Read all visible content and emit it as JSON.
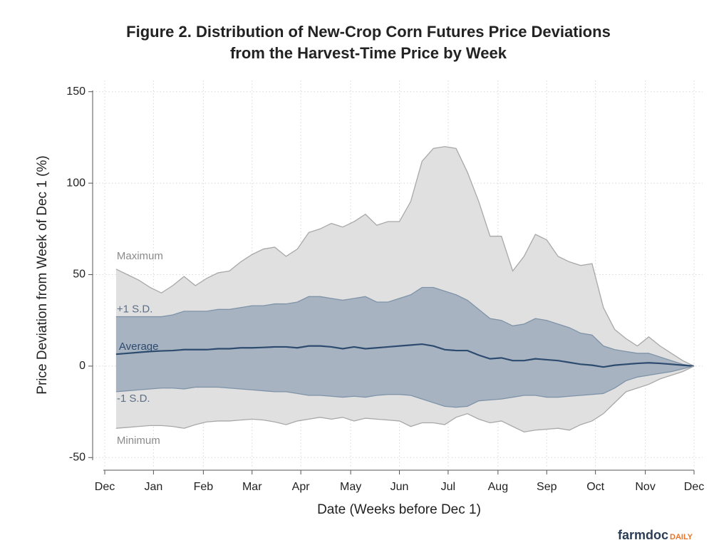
{
  "chart_data": {
    "type": "area",
    "title": [
      "Figure 2. Distribution of New-Crop Corn Futures Price Deviations",
      "from the Harvest-Time Price by Week"
    ],
    "x_label": "Date (Weeks before Dec 1)",
    "y_label": "Price Deviation from Week of Dec 1 (%)",
    "logo": [
      "farmdoc",
      "DAILY"
    ],
    "x": [
      1,
      2,
      3,
      4,
      5,
      6,
      7,
      8,
      9,
      10,
      11,
      12,
      13,
      14,
      15,
      16,
      17,
      18,
      19,
      20,
      21,
      22,
      23,
      24,
      25,
      26,
      27,
      28,
      29,
      30,
      31,
      32,
      33,
      34,
      35,
      36,
      37,
      38,
      39,
      40,
      41,
      42,
      43,
      44,
      45,
      46,
      47,
      48,
      49,
      50,
      51,
      52
    ],
    "xlim": [
      0,
      52
    ],
    "xticks": [
      {
        "value": 0,
        "label": "Dec"
      },
      {
        "value": 4.3,
        "label": "Jan"
      },
      {
        "value": 8.7,
        "label": "Feb"
      },
      {
        "value": 13,
        "label": "Mar"
      },
      {
        "value": 17.3,
        "label": "Apr"
      },
      {
        "value": 21.7,
        "label": "May"
      },
      {
        "value": 26,
        "label": "Jun"
      },
      {
        "value": 30.3,
        "label": "Jul"
      },
      {
        "value": 34.7,
        "label": "Aug"
      },
      {
        "value": 39,
        "label": "Sep"
      },
      {
        "value": 43.3,
        "label": "Oct"
      },
      {
        "value": 47.7,
        "label": "Nov"
      },
      {
        "value": 52,
        "label": "Dec"
      }
    ],
    "ylim": [
      -53,
      153
    ],
    "yticks": [
      -50,
      0,
      50,
      100,
      150
    ],
    "grid": true,
    "series": [
      {
        "name": "Maximum",
        "color": "#a8a8a8",
        "fill": "#e0e0e0",
        "values": [
          53,
          50,
          47,
          43,
          40,
          44,
          49,
          44,
          48,
          51,
          52,
          57,
          61,
          64,
          65,
          60,
          64,
          73,
          75,
          78,
          76,
          79,
          83,
          77,
          79,
          79,
          90,
          112,
          119,
          120,
          119,
          106,
          90,
          71,
          71,
          52,
          60,
          72,
          69,
          60,
          57,
          55,
          56,
          32,
          20,
          15,
          11,
          16,
          11,
          7,
          3,
          0
        ]
      },
      {
        "name": "+1 S.D.",
        "color": "#7f93a8",
        "fill": "#a8b3c1",
        "values": [
          27,
          27,
          27,
          27,
          27,
          28,
          30,
          30,
          30,
          31,
          31,
          32,
          33,
          33,
          34,
          34,
          35,
          38,
          38,
          37,
          36,
          37,
          38,
          35,
          35,
          37,
          39,
          43,
          43,
          41,
          39,
          36,
          31,
          26,
          25,
          22,
          23,
          26,
          25,
          23,
          21,
          18,
          17,
          11,
          9,
          8,
          7,
          7,
          5,
          3,
          1,
          0
        ]
      },
      {
        "name": "Average",
        "color": "#2c4b6e",
        "values": [
          6.5,
          7,
          7.5,
          8,
          8.3,
          8.5,
          9,
          9,
          9,
          9.5,
          9.5,
          10,
          10,
          10.2,
          10.5,
          10.5,
          10,
          11,
          11,
          10.5,
          9.5,
          10.5,
          9.5,
          10,
          10.5,
          11,
          11.5,
          12,
          11,
          9,
          8.5,
          8.5,
          6,
          4,
          4.5,
          3,
          3,
          4,
          3.5,
          3,
          2,
          1,
          0.5,
          -0.5,
          0.5,
          1,
          1.5,
          1.8,
          1.5,
          1,
          0.5,
          0
        ]
      },
      {
        "name": "-1 S.D.",
        "color": "#7f93a8",
        "values": [
          -14,
          -13.5,
          -13,
          -12.5,
          -12,
          -12,
          -12.5,
          -11.5,
          -11.5,
          -11.5,
          -12,
          -12.5,
          -13,
          -13.5,
          -14,
          -14,
          -15,
          -16,
          -16,
          -16.5,
          -17,
          -16.5,
          -17,
          -16,
          -15.5,
          -15.5,
          -16,
          -18,
          -20,
          -22,
          -22.5,
          -22,
          -19,
          -18.5,
          -18,
          -17,
          -16,
          -16,
          -17,
          -17,
          -16.5,
          -16,
          -15.5,
          -15,
          -12,
          -8,
          -6,
          -5,
          -4,
          -3,
          -1.5,
          0
        ]
      },
      {
        "name": "Minimum",
        "color": "#a8a8a8",
        "values": [
          -34,
          -33.5,
          -33,
          -32.5,
          -32.5,
          -33,
          -34,
          -32,
          -30.5,
          -30,
          -30,
          -29.5,
          -29,
          -29.5,
          -30.5,
          -32,
          -30,
          -29,
          -28,
          -29,
          -28,
          -30,
          -28.5,
          -29,
          -29.5,
          -30,
          -33,
          -31,
          -31,
          -32,
          -28,
          -26,
          -29,
          -31,
          -30,
          -33,
          -36,
          -35,
          -34.5,
          -34,
          -35,
          -32,
          -30,
          -26,
          -20,
          -14,
          -12,
          -10,
          -7,
          -5,
          -3,
          0
        ]
      }
    ]
  }
}
